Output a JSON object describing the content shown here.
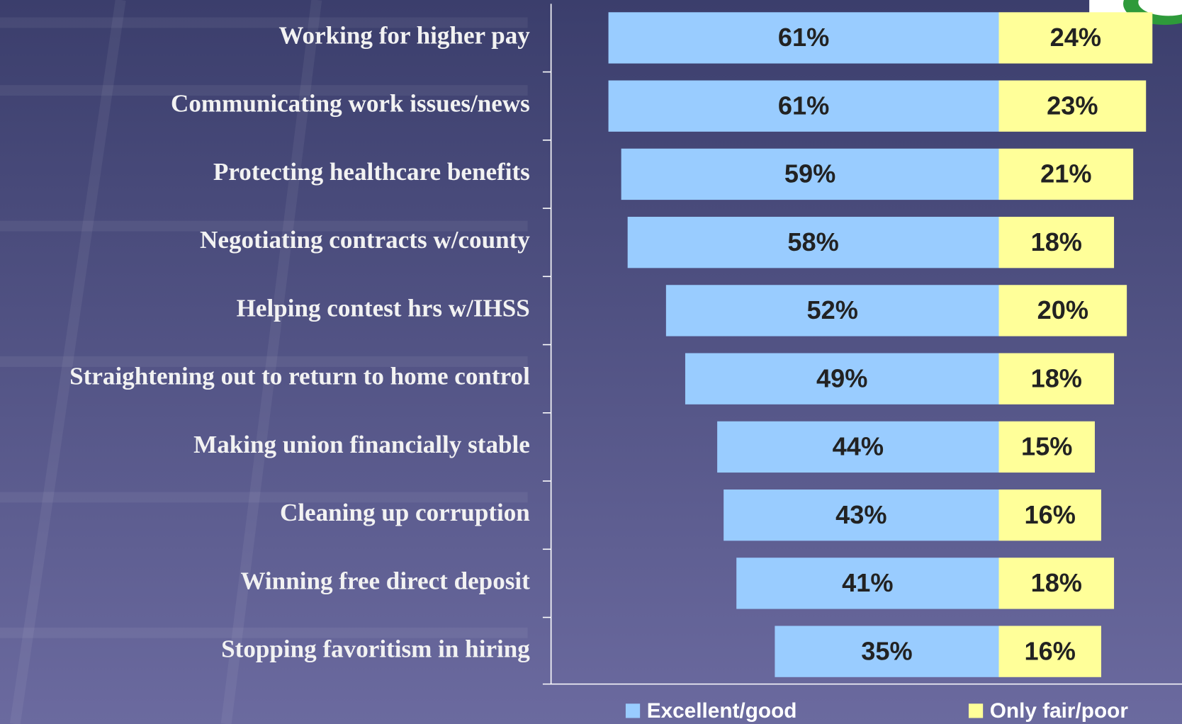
{
  "chart_data": {
    "type": "bar",
    "categories": [
      "Working for higher pay",
      "Communicating work issues/news",
      "Protecting healthcare benefits",
      "Negotiating contracts w/county",
      "Helping contest hrs w/IHSS",
      "Straightening out to return to home control",
      "Making union financially stable",
      "Cleaning up corruption",
      "Winning free direct deposit",
      "Stopping favoritism in hiring"
    ],
    "series": [
      {
        "name": "Excellent/good",
        "color": "#99ccff",
        "values": [
          61,
          61,
          59,
          58,
          52,
          49,
          44,
          43,
          41,
          35
        ],
        "value_labels": [
          "61%",
          "61%",
          "59%",
          "58%",
          "52%",
          "49%",
          "44%",
          "43%",
          "41%",
          "35%"
        ]
      },
      {
        "name": "Only fair/poor",
        "color": "#ffff99",
        "values": [
          24,
          23,
          21,
          18,
          20,
          18,
          15,
          16,
          18,
          16
        ],
        "value_labels": [
          "24%",
          "23%",
          "21%",
          "18%",
          "20%",
          "18%",
          "15%",
          "16%",
          "18%",
          "16%"
        ]
      }
    ],
    "legend": "bottom"
  }
}
